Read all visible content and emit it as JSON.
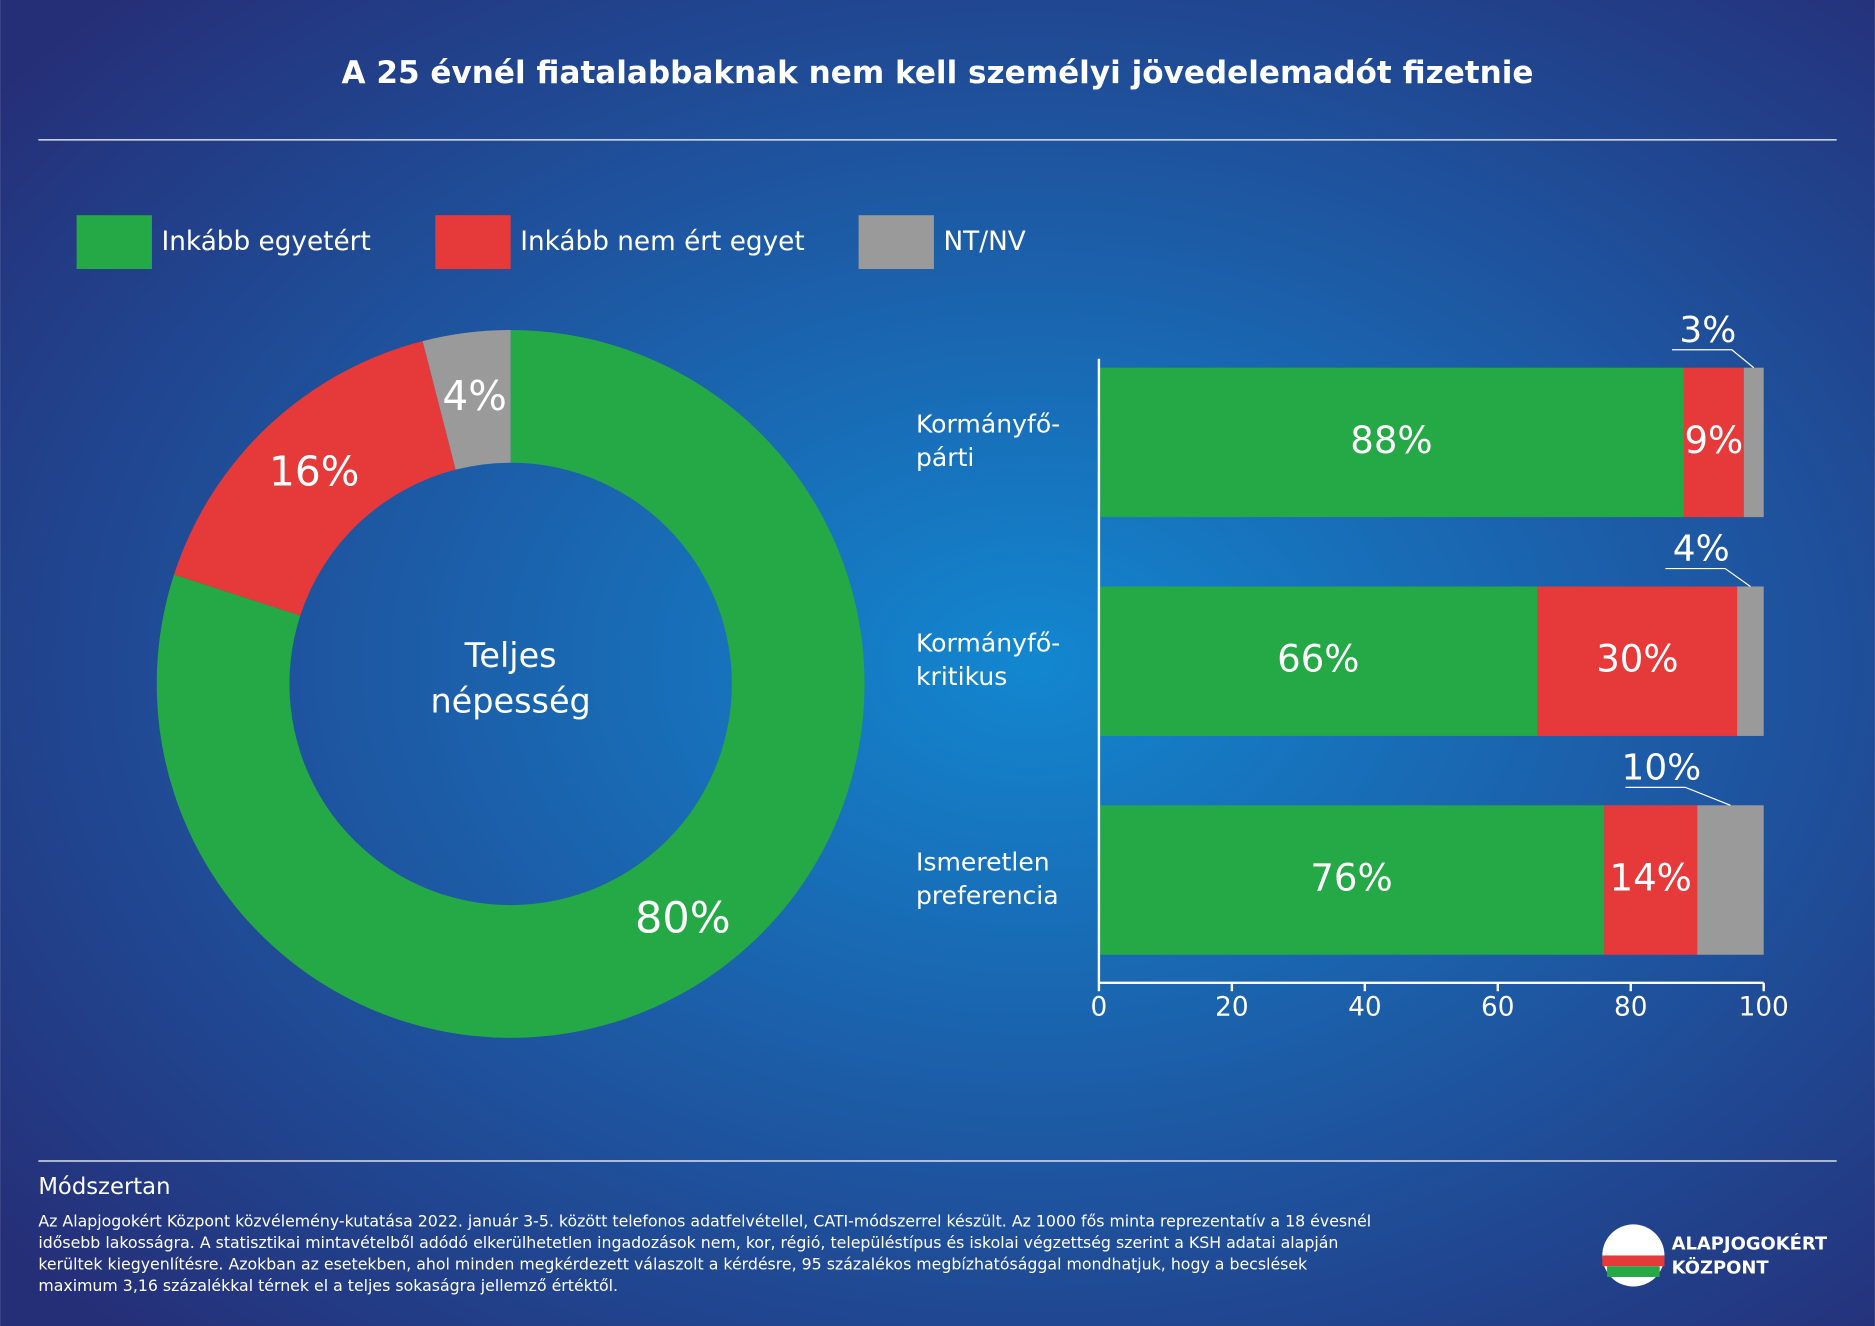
{
  "title": "A 25 évnél fiatalabbaknak nem kell személyi jövedelemadót fizetnie",
  "chart_data": [
    {
      "type": "donut",
      "center_label": [
        "Teljes",
        "népesség"
      ],
      "values": [
        80,
        16,
        4
      ],
      "value_labels": [
        "80%",
        "16%",
        "4%"
      ],
      "colors": [
        "#25a846",
        "#e63a3a",
        "#9a9a9a"
      ]
    },
    {
      "type": "bar",
      "orientation": "horizontal",
      "stacked": true,
      "categories": [
        [
          "Kormányfő-",
          "párti"
        ],
        [
          "Kormányfő-",
          "kritikus"
        ],
        [
          "Ismeretlen",
          "preferencia"
        ]
      ],
      "series": [
        {
          "name": "Inkább egyetért",
          "color": "#25a846",
          "values": [
            88,
            66,
            76
          ],
          "value_labels": [
            "88%",
            "66%",
            "76%"
          ]
        },
        {
          "name": "Inkább nem ért egyet",
          "color": "#e63a3a",
          "values": [
            9,
            30,
            14
          ],
          "value_labels": [
            "9%",
            "30%",
            "14%"
          ]
        },
        {
          "name": "NT/NV",
          "color": "#9a9a9a",
          "values": [
            3,
            4,
            10
          ],
          "value_labels": [
            "3%",
            "4%",
            "10%"
          ]
        }
      ],
      "xlim": [
        0,
        100
      ],
      "xticks": [
        0,
        20,
        40,
        60,
        80,
        100
      ]
    }
  ],
  "methodology": {
    "heading": "Módszertan",
    "lines": [
      "Az Alapjogokért Központ közvélemény-kutatása 2022. január 3-5. között telefonos adatfelvétellel, CATI-módszerrel készült. Az 1000 fős minta reprezentatív a 18 évesnél",
      "idősebb lakosságra. A statisztikai mintavételből adódó elkerülhetetlen ingadozások nem, kor, régió, településtípus és iskolai végzettség szerint a KSH adatai alapján",
      "kerültek kiegyenlítésre. Azokban az esetekben, ahol minden megkérdezett válaszolt a kérdésre, 95 százalékos megbízhatósággal mondhatjuk, hogy a becslések",
      "maximum 3,16 százalékkal térnek el a teljes sokaságra jellemző értéktől."
    ]
  },
  "logo": [
    "ALAPJOGOKÉRT",
    "KÖZPONT"
  ]
}
